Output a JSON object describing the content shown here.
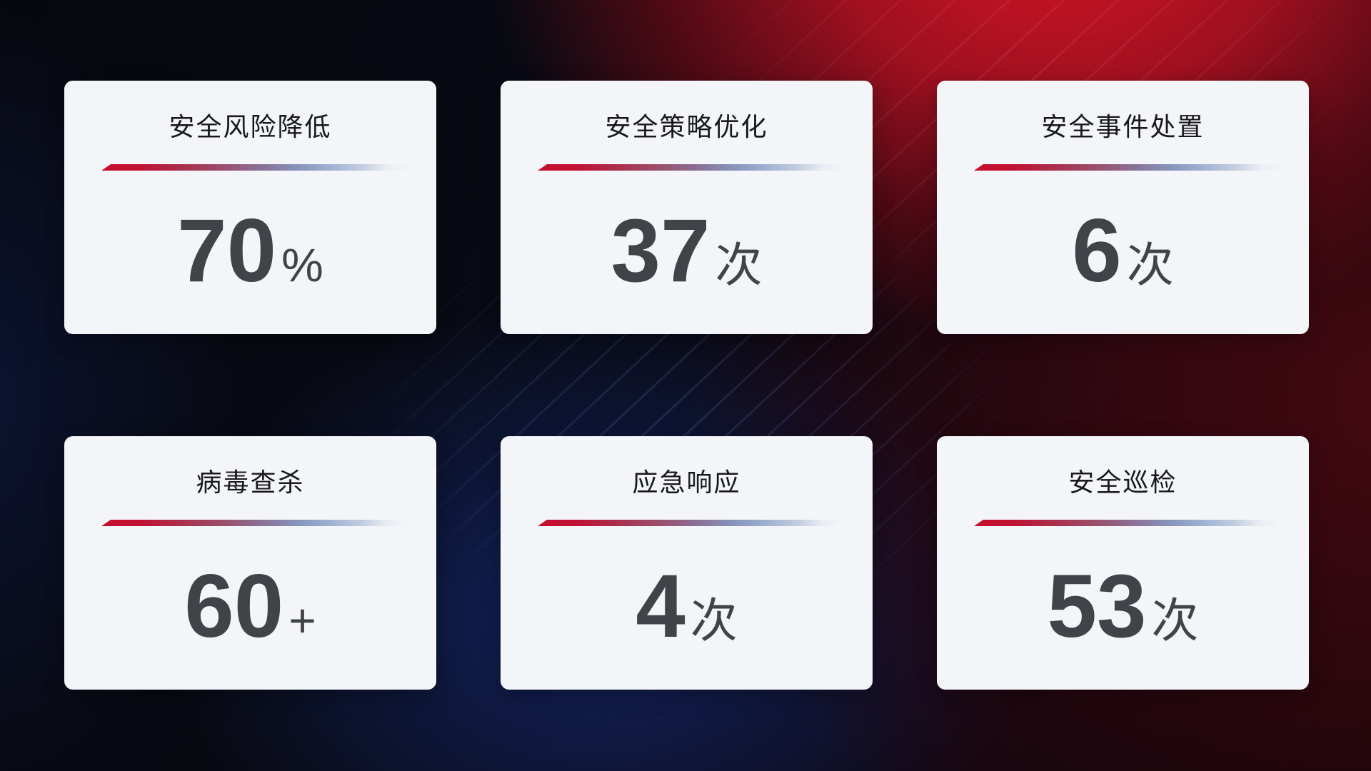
{
  "theme": {
    "card_background": "#f4f5f9",
    "title_color": "#17181d",
    "value_color": "#424348",
    "divider_gradient_start": "#c60e2d",
    "divider_gradient_mid": "#8b6f95",
    "divider_gradient_end": "#c2cde0",
    "background_red": "#c01020",
    "background_navy": "#12235e",
    "background_black": "#06070f"
  },
  "cards": [
    {
      "title": "安全风险降低",
      "value": "70",
      "unit": "%"
    },
    {
      "title": "安全策略优化",
      "value": "37",
      "unit": "次"
    },
    {
      "title": "安全事件处置",
      "value": "6",
      "unit": "次"
    },
    {
      "title": "病毒查杀",
      "value": "60",
      "unit": "+"
    },
    {
      "title": "应急响应",
      "value": "4",
      "unit": "次"
    },
    {
      "title": "安全巡检",
      "value": "53",
      "unit": "次"
    }
  ]
}
